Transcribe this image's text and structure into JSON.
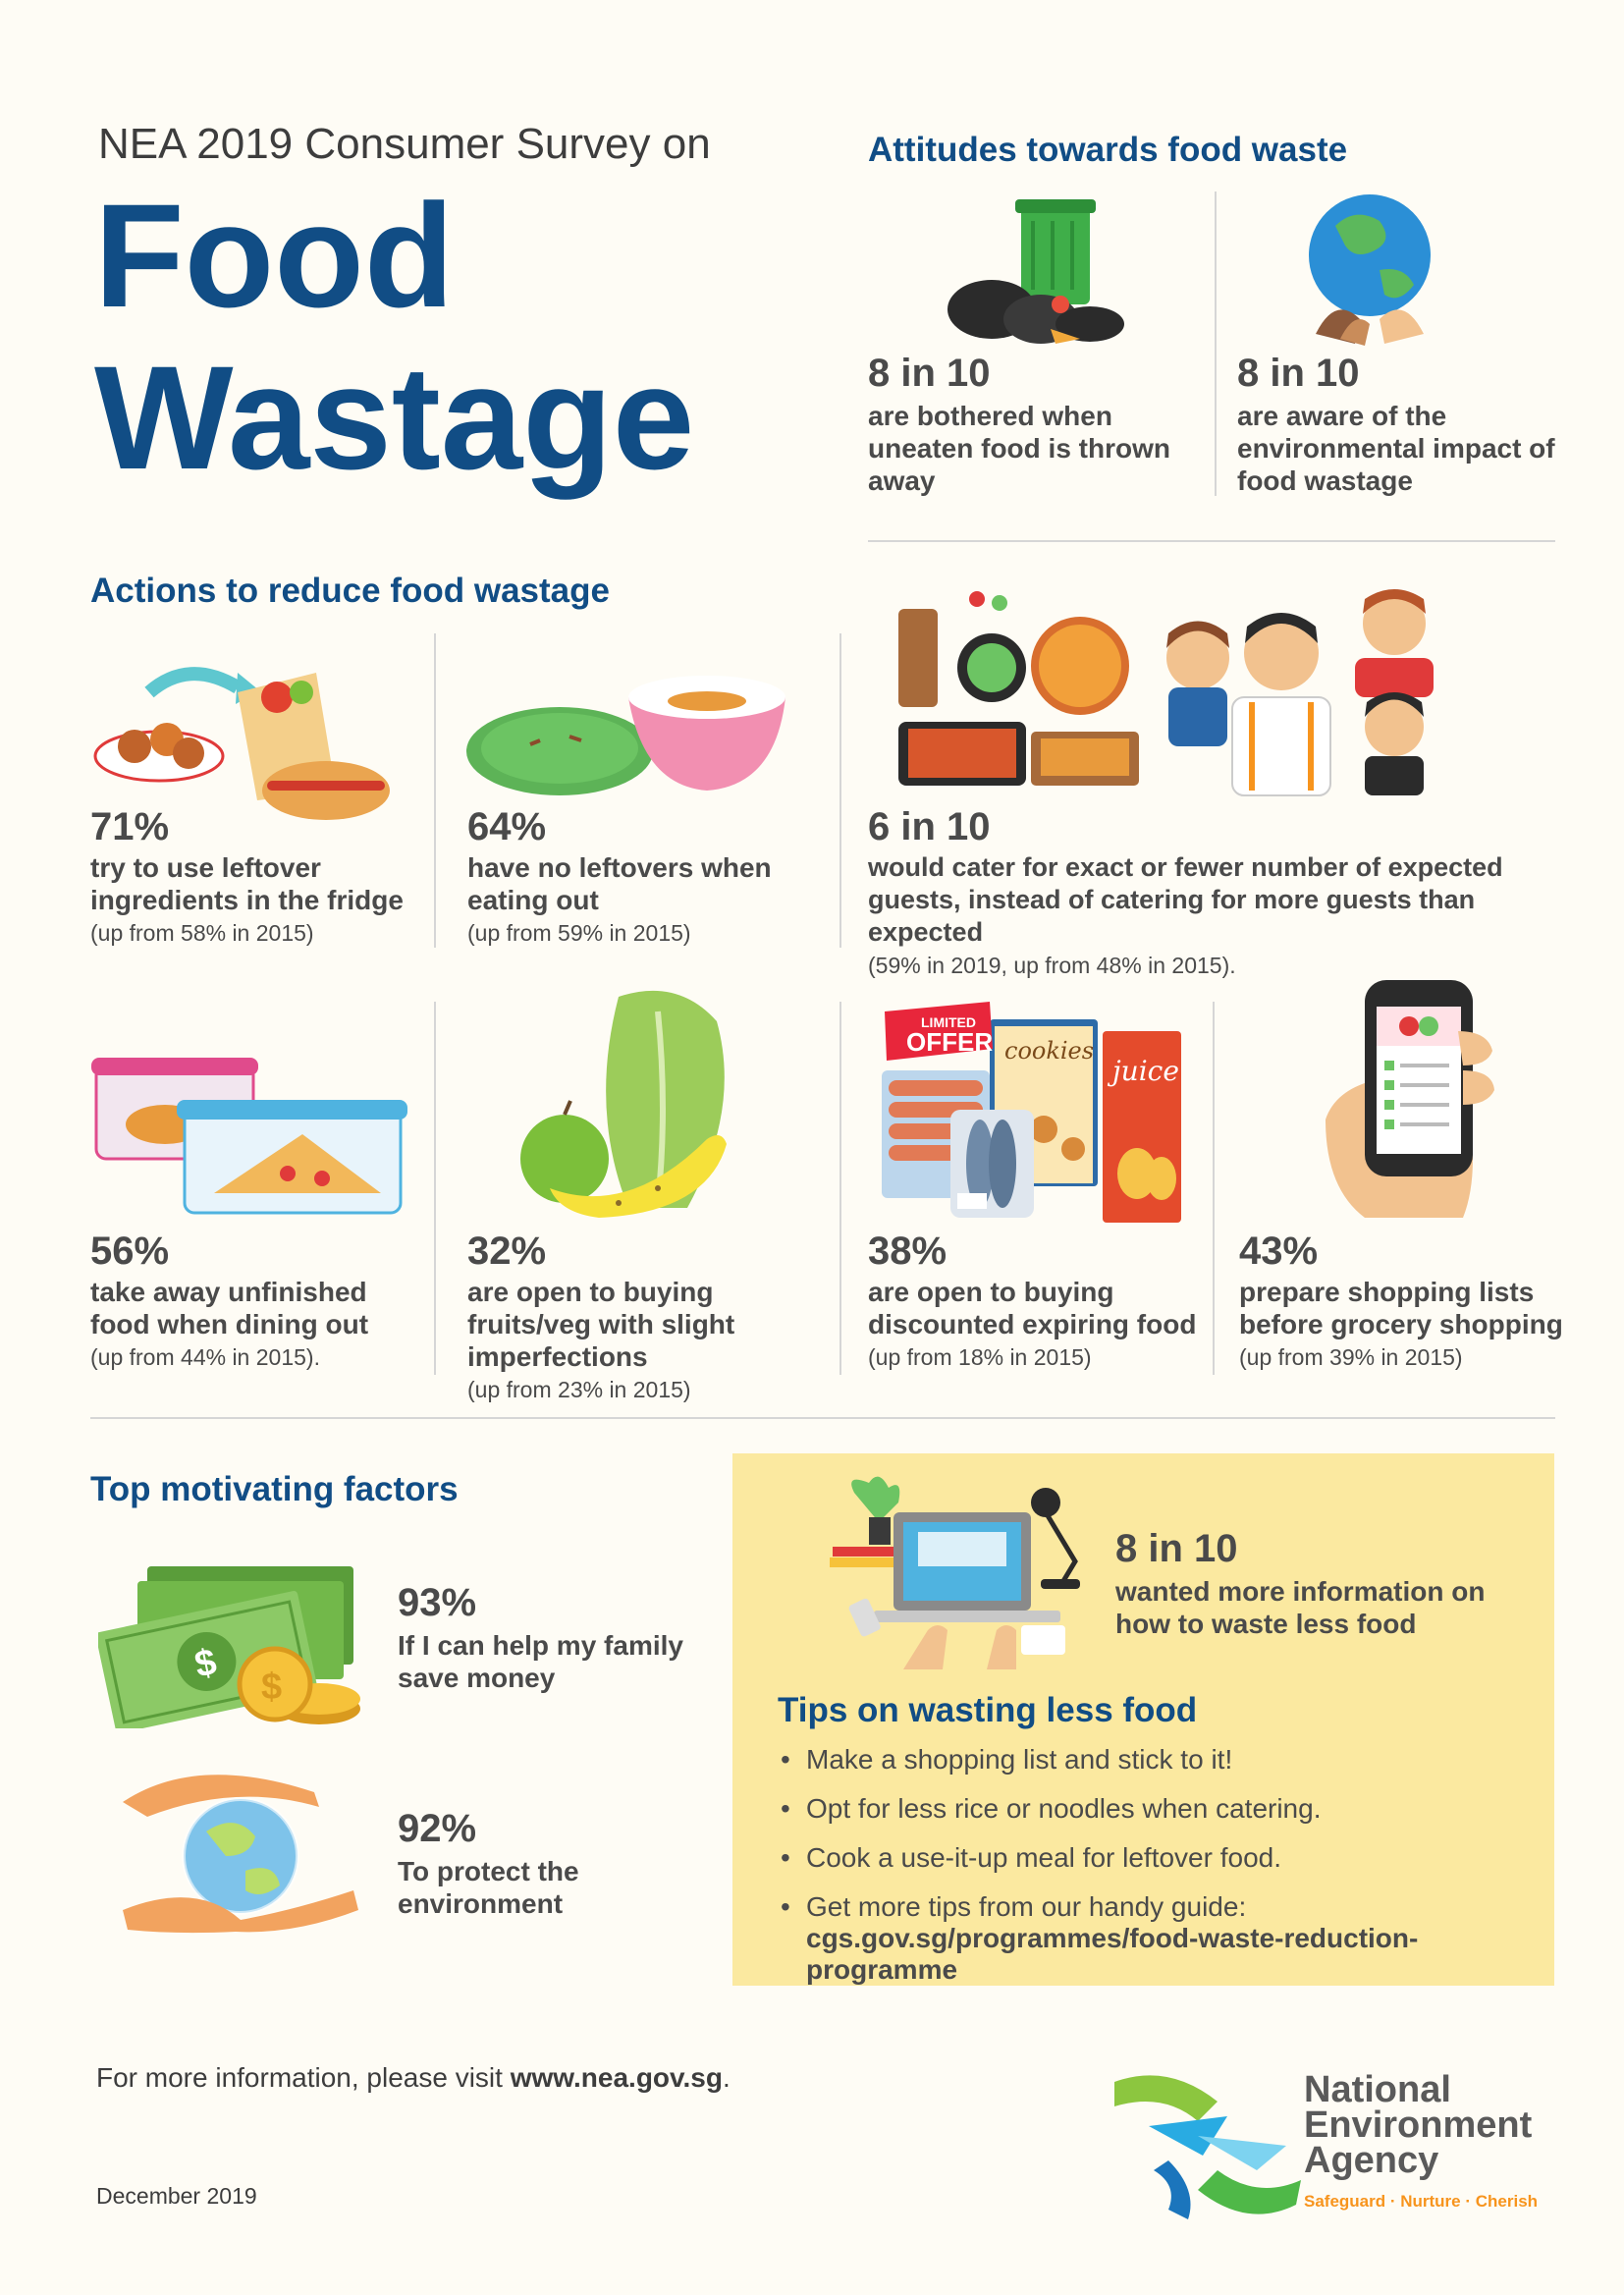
{
  "header": {
    "survey_title": "NEA 2019 Consumer Survey on",
    "title_line1": "Food",
    "title_line2": "Wastage"
  },
  "attitudes": {
    "title": "Attitudes towards food waste",
    "items": [
      {
        "stat": "8 in 10",
        "text": "are bothered when uneaten food is thrown away"
      },
      {
        "stat": "8 in 10",
        "text": "are aware of the environmental impact of food wastage"
      }
    ]
  },
  "actions": {
    "title": "Actions to reduce food wastage",
    "items": [
      {
        "stat": "71%",
        "text": "try to use leftover ingredients in the fridge",
        "note": "(up from 58% in 2015)"
      },
      {
        "stat": "64%",
        "text": "have no leftovers when eating out",
        "note": "(up from 59% in 2015)"
      },
      {
        "stat": "6 in 10",
        "text": "would cater for exact or fewer number of expected guests, instead of catering for more guests than expected",
        "note": "(59% in 2019, up from 48% in 2015)."
      },
      {
        "stat": "56%",
        "text": "take away unfinished food when dining out",
        "note": "(up from 44% in 2015)."
      },
      {
        "stat": "32%",
        "text": "are open to buying fruits/veg with slight imperfections",
        "note": "(up from 23% in 2015)"
      },
      {
        "stat": "38%",
        "text": "are open to buying discounted expiring food",
        "note": "(up from 18% in 2015)"
      },
      {
        "stat": "43%",
        "text": "prepare shopping lists before grocery shopping",
        "note": "(up from 39% in 2015)"
      }
    ],
    "packaging": {
      "offer_line1": "LIMITED",
      "offer_line2": "OFFER",
      "cookies": "cookies",
      "juice": "juice"
    }
  },
  "motivating": {
    "title": "Top motivating factors",
    "items": [
      {
        "stat": "93%",
        "text": "If I can help my family save money"
      },
      {
        "stat": "92%",
        "text": "To protect the environment"
      }
    ]
  },
  "tips_box": {
    "stat": "8 in 10",
    "text": "wanted more information on how to waste less food",
    "tips_title": "Tips on wasting less food",
    "tips": [
      "Make a shopping list and stick to it!",
      "Opt for less rice or noodles when catering.",
      "Cook a use-it-up meal for leftover food.",
      "Get more tips from our handy guide:"
    ],
    "guide_url": "cgs.gov.sg/programmes/food-waste-reduction-programme"
  },
  "footer": {
    "info_prefix": "For more information, please visit ",
    "info_url": "www.nea.gov.sg",
    "info_suffix": ".",
    "date": "December 2019"
  },
  "logo": {
    "line1": "National",
    "line2": "Environment",
    "line3": "Agency",
    "tagline": "Safeguard · Nurture · Cherish"
  },
  "colors": {
    "navy": "#114d85",
    "tips_bg": "#fbe9a0",
    "accent_orange": "#f7941d",
    "logo_green": "#8cc63f",
    "logo_blue": "#29abe2"
  }
}
